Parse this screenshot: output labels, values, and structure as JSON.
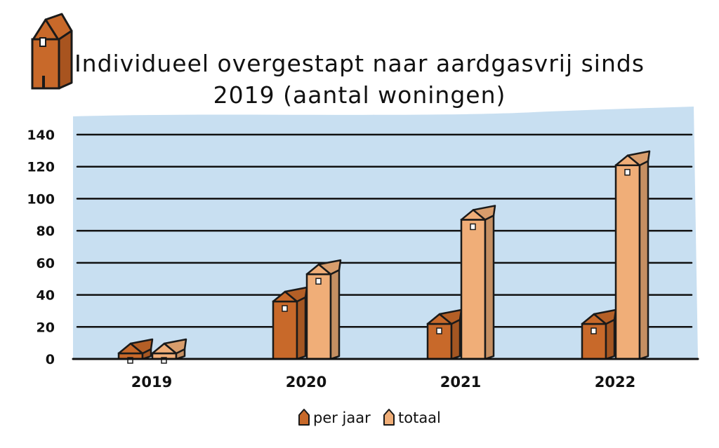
{
  "chart_data": {
    "type": "bar",
    "title": "Individueel overgestapt naar aardgasvrij sinds",
    "subtitle": "2019 (aantal woningen)",
    "categories": [
      "2019",
      "2020",
      "2021",
      "2022"
    ],
    "series": [
      {
        "name": "per jaar",
        "values": [
          8,
          42,
          28,
          28
        ]
      },
      {
        "name": "totaal",
        "values": [
          9,
          59,
          93,
          127
        ]
      }
    ],
    "ylim": [
      0,
      140
    ],
    "yticks": [
      0,
      20,
      40,
      60,
      80,
      100,
      120,
      140
    ],
    "grid": true,
    "legend_position": "bottom"
  },
  "colors": {
    "background": "#c8dff1",
    "per_jaar": "#c8692a",
    "totaal": "#f0ae78",
    "outline": "#1a1a1a"
  },
  "decoration": {
    "icon": "house-tower-icon"
  }
}
